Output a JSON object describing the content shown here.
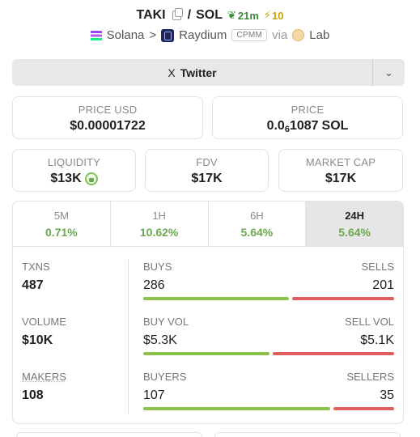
{
  "header": {
    "token": "TAKI",
    "separator": "/",
    "quote": "SOL",
    "age": "21m",
    "boosts": "10",
    "chain": "Solana",
    "arrow": ">",
    "dex": "Raydium",
    "pool_type": "CPMM",
    "via_label": "via",
    "via": "Lab",
    "icons": {
      "copy": "copy-icon",
      "age": "seedling-icon",
      "boost": "lightning-icon",
      "chain": "solana-icon",
      "dex": "raydium-icon",
      "via": "lab-icon"
    }
  },
  "social": {
    "twitter_glyph": "X",
    "twitter_label": "Twitter",
    "more_glyph": "⌄"
  },
  "price_usd": {
    "label": "PRICE USD",
    "value": "$0.00001722"
  },
  "price": {
    "label": "PRICE",
    "prefix": "0.0",
    "zeros": "6",
    "digits": "1087",
    "unit": "SOL"
  },
  "liquidity": {
    "label": "LIQUIDITY",
    "value": "$13K"
  },
  "fdv": {
    "label": "FDV",
    "value": "$17K"
  },
  "market_cap": {
    "label": "MARKET CAP",
    "value": "$17K"
  },
  "tabs": [
    {
      "label": "5M",
      "value": "0.71%",
      "active": false
    },
    {
      "label": "1H",
      "value": "10.62%",
      "active": false
    },
    {
      "label": "6H",
      "value": "5.64%",
      "active": false
    },
    {
      "label": "24H",
      "value": "5.64%",
      "active": true
    }
  ],
  "stats": {
    "txns": {
      "label": "TXNS",
      "value": "487",
      "buys_label": "BUYS",
      "buys": "286",
      "sells_label": "SELLS",
      "sells": "201",
      "buy_fraction": 0.587
    },
    "volume": {
      "label": "VOLUME",
      "value": "$10K",
      "buys_label": "BUY VOL",
      "buys": "$5.3K",
      "sells_label": "SELL VOL",
      "sells": "$5.1K",
      "buy_fraction": 0.51
    },
    "makers": {
      "label": "MAKERS",
      "value": "108",
      "buys_label": "BUYERS",
      "buys": "107",
      "sells_label": "SELLERS",
      "sells": "35",
      "buy_fraction": 0.754
    }
  },
  "colors": {
    "buy": "#8bc34a",
    "sell": "#e06060",
    "positive": "#6aa84f",
    "boost": "#c9a400"
  }
}
